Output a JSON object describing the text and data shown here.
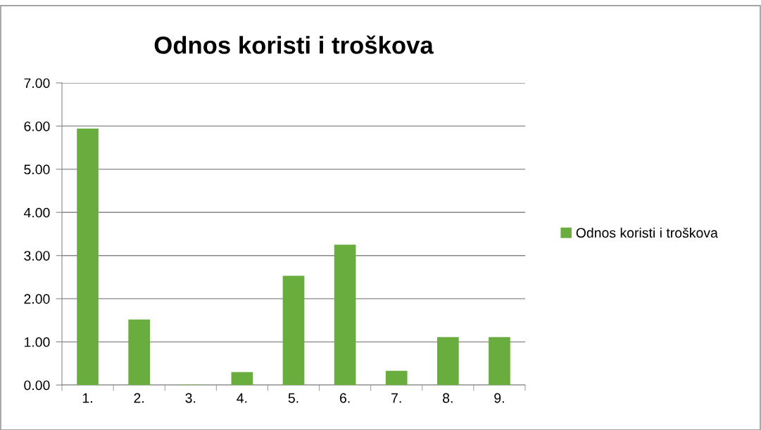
{
  "chart_data": {
    "type": "bar",
    "title": "Odnos koristi i troškova",
    "categories": [
      "1.",
      "2.",
      "3.",
      "4.",
      "5.",
      "6.",
      "7.",
      "8.",
      "9."
    ],
    "series": [
      {
        "name": "Odnos koristi i troškova",
        "color": "#6aad3f",
        "values": [
          5.94,
          1.52,
          0.01,
          0.3,
          2.53,
          3.25,
          0.33,
          1.11,
          1.11
        ]
      }
    ],
    "ylim": [
      0,
      7
    ],
    "yticks": [
      {
        "value": 0,
        "label": "0.00"
      },
      {
        "value": 1,
        "label": "1.00"
      },
      {
        "value": 2,
        "label": "2.00"
      },
      {
        "value": 3,
        "label": "3.00"
      },
      {
        "value": 4,
        "label": "4.00"
      },
      {
        "value": 5,
        "label": "5.00"
      },
      {
        "value": 6,
        "label": "6.00"
      },
      {
        "value": 7,
        "label": "7.00"
      }
    ],
    "grid": "y",
    "legend": "right"
  }
}
